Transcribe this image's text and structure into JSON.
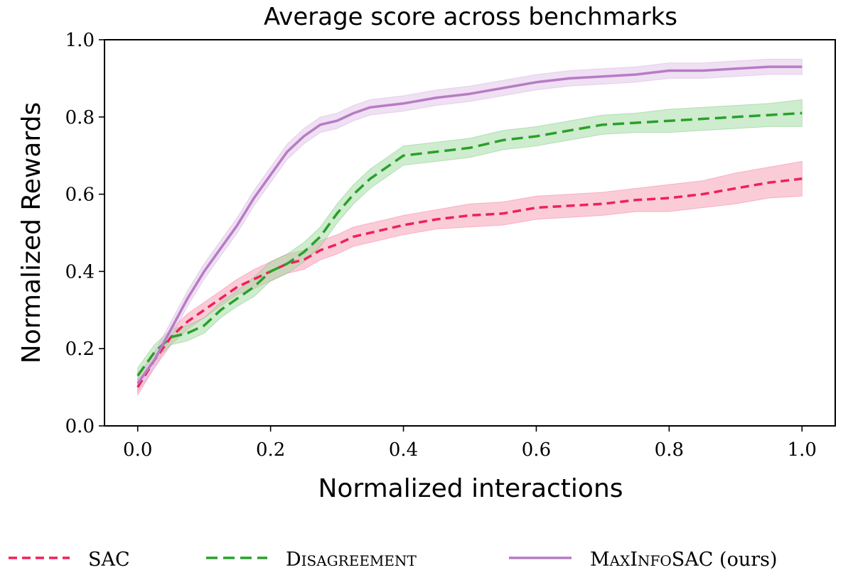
{
  "chart_data": {
    "type": "line",
    "title": "Average score across benchmarks",
    "xlabel": "Normalized interactions",
    "ylabel": "Normalized Rewards",
    "xlim": [
      -0.05,
      1.05
    ],
    "ylim": [
      0.0,
      1.0
    ],
    "xticks": [
      "0.0",
      "0.2",
      "0.4",
      "0.6",
      "0.8",
      "1.0"
    ],
    "yticks": [
      "0.0",
      "0.2",
      "0.4",
      "0.6",
      "0.8",
      "1.0"
    ],
    "grid": false,
    "legend_position": "bottom",
    "x": [
      0.0,
      0.025,
      0.05,
      0.075,
      0.1,
      0.125,
      0.15,
      0.175,
      0.2,
      0.225,
      0.25,
      0.275,
      0.3,
      0.325,
      0.35,
      0.375,
      0.4,
      0.45,
      0.5,
      0.55,
      0.6,
      0.65,
      0.7,
      0.75,
      0.8,
      0.85,
      0.9,
      0.95,
      1.0
    ],
    "series": [
      {
        "name": "SAC",
        "style": "dashed",
        "color": "#f0205a",
        "band_color": "#f6a3b8",
        "values": [
          0.1,
          0.17,
          0.23,
          0.27,
          0.3,
          0.33,
          0.36,
          0.38,
          0.4,
          0.42,
          0.43,
          0.455,
          0.47,
          0.49,
          0.5,
          0.51,
          0.52,
          0.535,
          0.545,
          0.55,
          0.565,
          0.57,
          0.575,
          0.585,
          0.59,
          0.6,
          0.615,
          0.63,
          0.64
        ],
        "band": [
          0.02,
          0.02,
          0.02,
          0.02,
          0.02,
          0.02,
          0.02,
          0.025,
          0.025,
          0.025,
          0.025,
          0.025,
          0.025,
          0.025,
          0.025,
          0.025,
          0.025,
          0.025,
          0.03,
          0.03,
          0.03,
          0.03,
          0.03,
          0.03,
          0.035,
          0.035,
          0.04,
          0.04,
          0.045
        ]
      },
      {
        "name": "Disagreement",
        "style": "dashed",
        "color": "#2aa02a",
        "band_color": "#a6dca6",
        "values": [
          0.13,
          0.19,
          0.23,
          0.24,
          0.26,
          0.3,
          0.33,
          0.36,
          0.4,
          0.42,
          0.45,
          0.49,
          0.55,
          0.6,
          0.64,
          0.67,
          0.7,
          0.71,
          0.72,
          0.74,
          0.75,
          0.765,
          0.78,
          0.785,
          0.79,
          0.795,
          0.8,
          0.805,
          0.81
        ],
        "band": [
          0.02,
          0.02,
          0.02,
          0.02,
          0.02,
          0.02,
          0.02,
          0.025,
          0.025,
          0.025,
          0.025,
          0.025,
          0.025,
          0.025,
          0.025,
          0.025,
          0.025,
          0.025,
          0.025,
          0.025,
          0.025,
          0.025,
          0.025,
          0.025,
          0.03,
          0.03,
          0.03,
          0.03,
          0.035
        ]
      },
      {
        "name": "MaxInfoSAC (ours)",
        "style": "solid",
        "color": "#b77cc4",
        "band_color": "#e2c6e9",
        "values": [
          0.11,
          0.17,
          0.25,
          0.33,
          0.4,
          0.46,
          0.52,
          0.59,
          0.65,
          0.71,
          0.75,
          0.78,
          0.79,
          0.81,
          0.825,
          0.83,
          0.835,
          0.85,
          0.86,
          0.875,
          0.89,
          0.9,
          0.905,
          0.91,
          0.92,
          0.92,
          0.925,
          0.93,
          0.93
        ],
        "band": [
          0.02,
          0.02,
          0.02,
          0.02,
          0.02,
          0.02,
          0.02,
          0.02,
          0.02,
          0.02,
          0.02,
          0.02,
          0.02,
          0.02,
          0.02,
          0.02,
          0.02,
          0.02,
          0.02,
          0.02,
          0.02,
          0.02,
          0.02,
          0.02,
          0.02,
          0.02,
          0.02,
          0.02,
          0.02
        ]
      }
    ]
  },
  "legend": {
    "items": [
      {
        "label": "SAC",
        "color": "#f0205a",
        "style": "dashed"
      },
      {
        "label": "Disagreement",
        "color": "#2aa02a",
        "style": "dashed"
      },
      {
        "label": "MaxInfoSAC (ours)",
        "color": "#b77cc4",
        "style": "solid"
      }
    ]
  }
}
